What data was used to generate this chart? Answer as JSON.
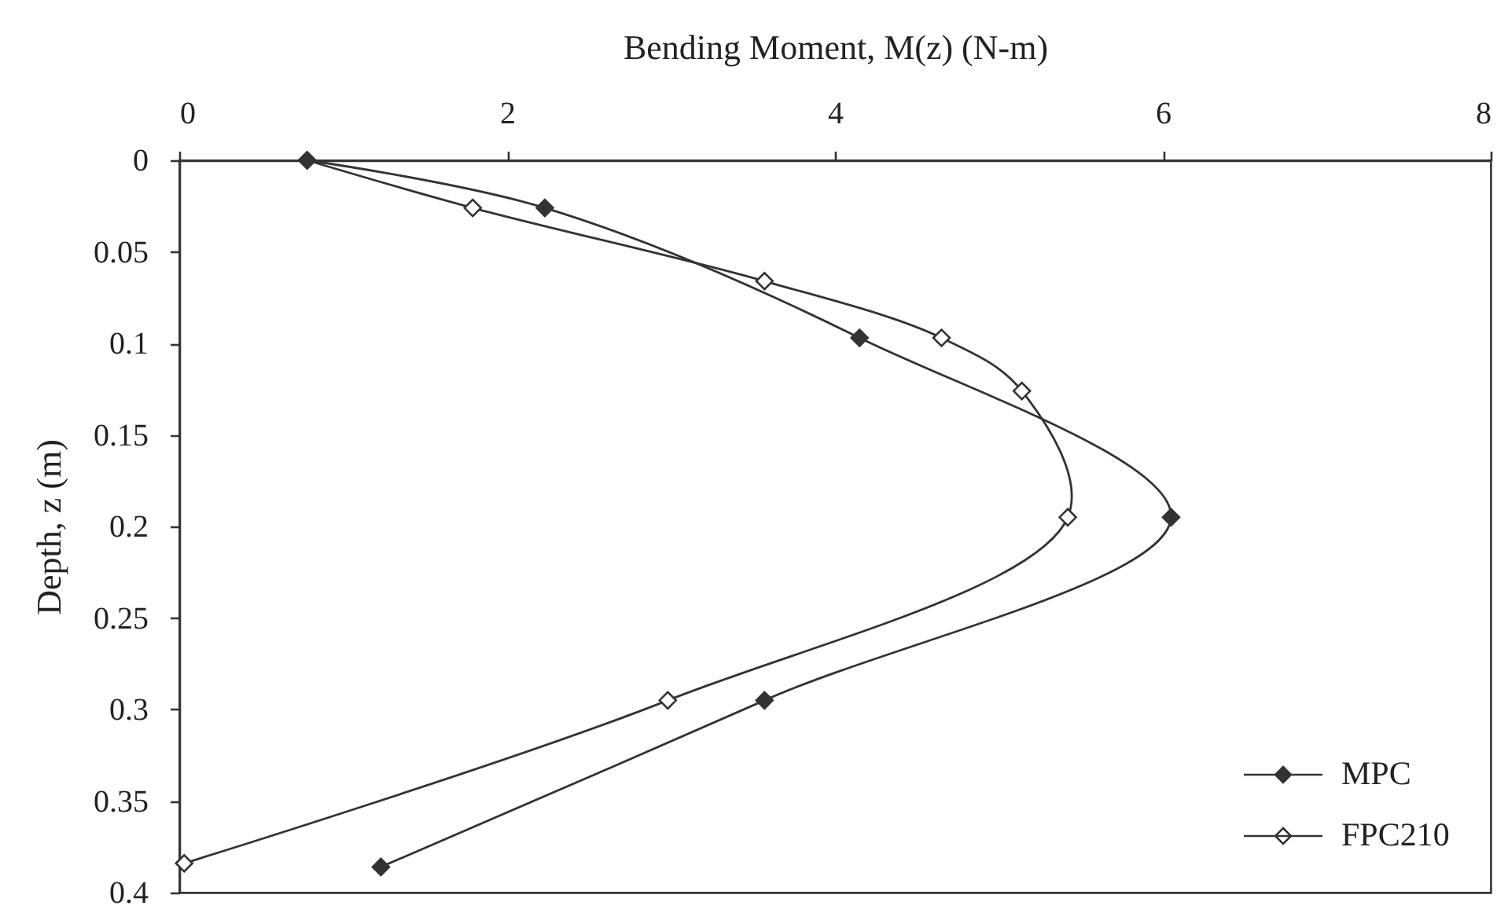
{
  "chart_data": {
    "type": "line",
    "xlabel": "Bending Moment, M(z) (N-m)",
    "ylabel": "Depth, z (m)",
    "xlim": [
      0,
      8
    ],
    "xticks": [
      0,
      2,
      4,
      6,
      8
    ],
    "ylim": [
      0.4,
      0
    ],
    "yticks": [
      0,
      0.05,
      0.1,
      0.15,
      0.2,
      0.25,
      0.3,
      0.35,
      0.4
    ],
    "marker": "diamond",
    "legend": "bottom right",
    "series": [
      {
        "name": "MPC",
        "color": "#333333",
        "x": [
          0.78,
          2.23,
          4.15,
          6.05,
          3.57,
          1.23
        ],
        "values": [
          0,
          0.026,
          0.097,
          0.195,
          0.295,
          0.386
        ]
      },
      {
        "name": "FPC210",
        "color": "#333333",
        "x": [
          0.78,
          1.79,
          3.57,
          4.65,
          5.14,
          5.42,
          2.98,
          0.03
        ],
        "values": [
          0,
          0.026,
          0.066,
          0.097,
          0.126,
          0.195,
          0.295,
          0.384
        ]
      }
    ]
  }
}
